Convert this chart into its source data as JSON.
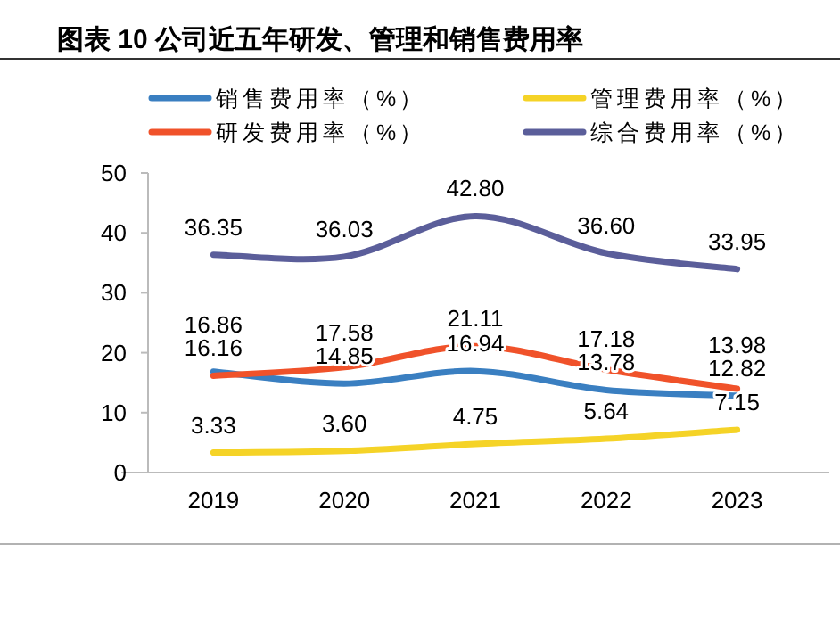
{
  "chart_data": {
    "type": "line",
    "title": "图表 10 公司近五年研发、管理和销售费用率",
    "categories": [
      "2019",
      "2020",
      "2021",
      "2022",
      "2023"
    ],
    "series": [
      {
        "name": "销售费用率（%）",
        "color": "#3a7fc1",
        "values": [
          16.86,
          14.85,
          16.94,
          13.78,
          12.82
        ],
        "value_labels": [
          "16.86",
          "14.85",
          "16.94",
          "13.78",
          "12.82"
        ]
      },
      {
        "name": "管理费用率（%）",
        "color": "#f5d327",
        "values": [
          3.33,
          3.6,
          4.75,
          5.64,
          7.15
        ],
        "value_labels": [
          "3.33",
          "3.60",
          "4.75",
          "5.64",
          "7.15"
        ]
      },
      {
        "name": "研发费用率（%）",
        "color": "#f0522a",
        "values": [
          16.16,
          17.58,
          21.11,
          17.18,
          13.98
        ],
        "value_labels": [
          "16.16",
          "17.58",
          "21.11",
          "17.18",
          "13.98"
        ]
      },
      {
        "name": "综合费用率（%）",
        "color": "#5b5e9a",
        "values": [
          36.35,
          36.03,
          42.8,
          36.6,
          33.95
        ],
        "value_labels": [
          "36.35",
          "36.03",
          "42.80",
          "36.60",
          "33.95"
        ]
      }
    ],
    "ylim": [
      0,
      50
    ],
    "yticks": [
      0,
      10,
      20,
      30,
      40,
      50
    ],
    "legend": "top",
    "grid": false,
    "marker": "none",
    "line_style": "solid"
  }
}
